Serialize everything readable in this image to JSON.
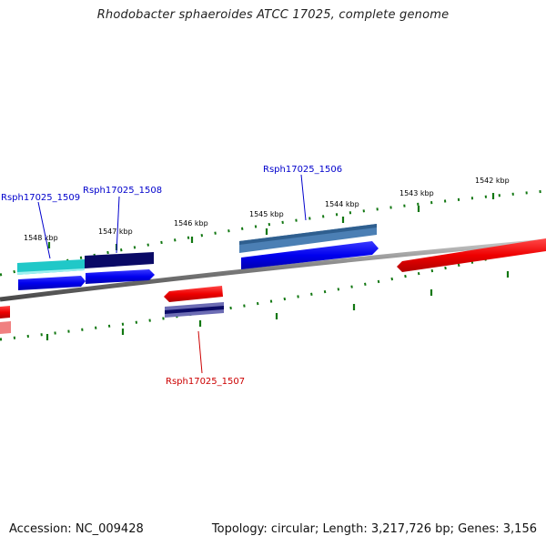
{
  "title": "Rhodobacter sphaeroides ATCC 17025, complete genome",
  "footer": {
    "accession": "Accession: NC_009428",
    "summary": "Topology: circular; Length: 3,217,726 bp; Genes: 3,156"
  },
  "ticks": [
    "1548 kbp",
    "1547 kbp",
    "1546 kbp",
    "1545 kbp",
    "1544 kbp",
    "1543 kbp",
    "1542 kbp"
  ],
  "gene_labels": {
    "g1509": "Rsph17025_1509",
    "g1508": "Rsph17025_1508",
    "g1506": "Rsph17025_1506",
    "g1507": "Rsph17025_1507"
  },
  "colors": {
    "forward": "#0000ee",
    "reverse": "#ee0000",
    "backbone": "#808080",
    "tick": "#117711",
    "label_forward": "#0000cc",
    "label_reverse": "#cc0000"
  }
}
